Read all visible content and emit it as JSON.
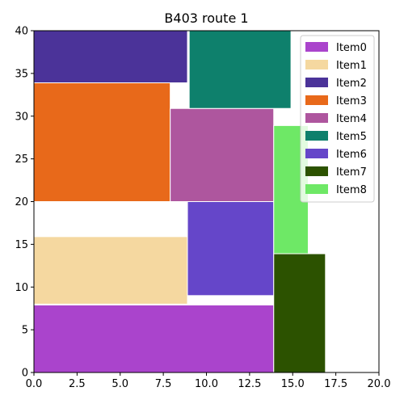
{
  "chart_data": {
    "type": "bar",
    "title": "B403 route 1",
    "xlabel": "",
    "ylabel": "",
    "xlim": [
      0,
      20
    ],
    "ylim": [
      0,
      40
    ],
    "xticks": [
      "0.0",
      "2.5",
      "5.0",
      "7.5",
      "10.0",
      "12.5",
      "15.0",
      "17.5",
      "20.0"
    ],
    "yticks": [
      "0",
      "5",
      "10",
      "15",
      "20",
      "25",
      "30",
      "35",
      "40"
    ],
    "grid": false,
    "legend_position": "top-right",
    "items": [
      {
        "name": "Item0",
        "x0": 0.0,
        "x1": 13.9,
        "y0": 0.0,
        "y1": 7.9,
        "color": "#AA44CC"
      },
      {
        "name": "Item1",
        "x0": 0.0,
        "x1": 8.9,
        "y0": 8.0,
        "y1": 15.9,
        "color": "#F5D8A0"
      },
      {
        "name": "Item2",
        "x0": 0.0,
        "x1": 8.9,
        "y0": 33.9,
        "y1": 40.0,
        "color": "#4B3399"
      },
      {
        "name": "Item3",
        "x0": 0.0,
        "x1": 7.9,
        "y0": 20.0,
        "y1": 33.9,
        "color": "#E8691A"
      },
      {
        "name": "Item4",
        "x0": 7.9,
        "x1": 13.9,
        "y0": 20.0,
        "y1": 30.9,
        "color": "#AE569E"
      },
      {
        "name": "Item5",
        "x0": 9.0,
        "x1": 14.9,
        "y0": 30.9,
        "y1": 40.0,
        "color": "#0E806C"
      },
      {
        "name": "Item6",
        "x0": 8.9,
        "x1": 13.9,
        "y0": 9.0,
        "y1": 20.0,
        "color": "#6546C9"
      },
      {
        "name": "Item7",
        "x0": 13.9,
        "x1": 16.9,
        "y0": 0.0,
        "y1": 13.9,
        "color": "#2C5200"
      },
      {
        "name": "Item8",
        "x0": 13.9,
        "x1": 15.9,
        "y0": 13.9,
        "y1": 28.9,
        "color": "#6EE866"
      }
    ]
  }
}
